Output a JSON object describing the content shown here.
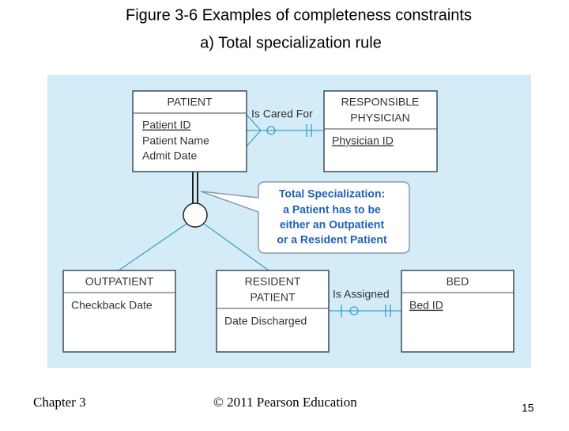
{
  "header": {
    "title": "Figure 3-6 Examples of completeness constraints",
    "subtitle": "a) Total specialization rule"
  },
  "nodes": [
    {
      "label": [
        "PATIENT"
      ],
      "attributes": [
        "Patient ID",
        "Patient Name",
        "Admit Date"
      ]
    },
    {
      "label": [
        "RESPONSIBLE",
        "PHYSICIAN"
      ],
      "attributes": [
        "Physician ID"
      ]
    },
    {
      "label": [
        "OUTPATIENT"
      ],
      "attributes": [
        "Checkback Date"
      ]
    },
    {
      "label": [
        "RESIDENT",
        "PATIENT"
      ],
      "attributes": [
        "Date Discharged"
      ]
    },
    {
      "label": [
        "BED"
      ],
      "attributes": [
        "Bed ID"
      ]
    }
  ],
  "relationships": [
    {
      "label": "Is Cared For"
    },
    {
      "label": "Is Assigned"
    }
  ],
  "callout": [
    "Total Specialization:",
    "a Patient has to be",
    "either an Outpatient",
    "or a Resident Patient"
  ],
  "footer": {
    "chapter": "Chapter 3",
    "copyright": "© 2011 Pearson Education",
    "page": "15"
  }
}
